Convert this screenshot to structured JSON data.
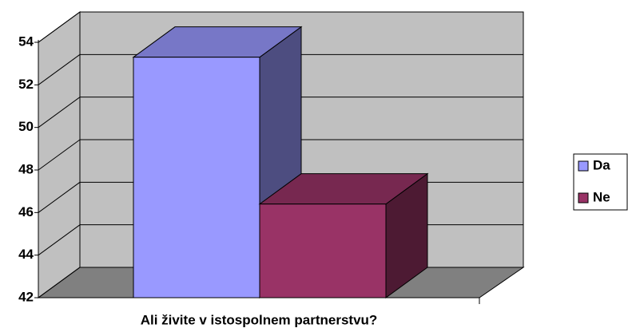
{
  "chart_data": {
    "type": "bar3d",
    "categories": [
      "Ali živite v istospolnem partnerstvu?"
    ],
    "series": [
      {
        "name": "Da",
        "color": "#9999ff",
        "values": [
          53.3
        ]
      },
      {
        "name": "Ne",
        "color": "#993366",
        "values": [
          46.4
        ]
      }
    ],
    "ylim": [
      42,
      54
    ],
    "yticks": [
      42,
      44,
      46,
      48,
      50,
      52,
      54
    ],
    "grid": true,
    "legend": "right"
  }
}
